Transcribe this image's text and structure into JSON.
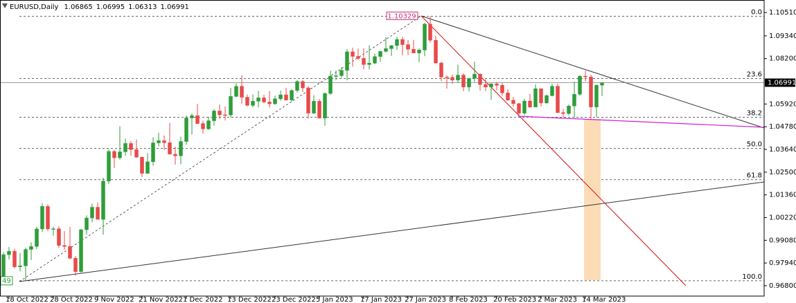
{
  "chart_data": {
    "type": "candlestick",
    "symbol": "EURUSD,Daily",
    "up_color": "#2e9e3a",
    "down_color": "#e84a4a",
    "ylim": [
      0.9628,
      1.1114
    ],
    "yticks": [
      {
        "value": 1.1051,
        "label": "1.10510"
      },
      {
        "value": 1.0934,
        "label": "1.09340"
      },
      {
        "value": 1.082,
        "label": "1.08200"
      },
      {
        "value": 1.0592,
        "label": "1.05920"
      },
      {
        "value": 1.0478,
        "label": "1.04780"
      },
      {
        "value": 1.0364,
        "label": "1.03640"
      },
      {
        "value": 1.025,
        "label": "1.02500"
      },
      {
        "value": 1.0136,
        "label": "1.01360"
      },
      {
        "value": 1.0022,
        "label": "1.00220"
      },
      {
        "value": 0.9908,
        "label": "0.99080"
      },
      {
        "value": 0.9794,
        "label": "0.97940"
      },
      {
        "value": 0.968,
        "label": "0.96800"
      }
    ],
    "categories": [
      null,
      null,
      null,
      "18 Oct 2022",
      null,
      null,
      null,
      null,
      null,
      null,
      null,
      "28 Oct 2022",
      null,
      null,
      null,
      null,
      null,
      null,
      null,
      "9 Nov 2022",
      null,
      null,
      null,
      null,
      null,
      null,
      null,
      "21 Nov 2022",
      null,
      null,
      null,
      null,
      null,
      null,
      null,
      "1 Dec 2022",
      null,
      null,
      null,
      null,
      null,
      null,
      null,
      "13 Dec 2022",
      null,
      null,
      null,
      null,
      null,
      null,
      null,
      "23 Dec 2022",
      null,
      null,
      null,
      null,
      null,
      null,
      null,
      "5 Jan 2023",
      null,
      null,
      null,
      null,
      null,
      null,
      null,
      "17 Jan 2023",
      null,
      null,
      null,
      null,
      null,
      null,
      null,
      "27 Jan 2023",
      null,
      null,
      null,
      null,
      null,
      null,
      null,
      "8 Feb 2023",
      null,
      null,
      null,
      null,
      null,
      null,
      null,
      "20 Feb 2023",
      null,
      null,
      null,
      null,
      null,
      null,
      null,
      "2 Mar 2023",
      null,
      null,
      null,
      null,
      null,
      null,
      null,
      "14 Mar 2023",
      null,
      null,
      null
    ],
    "open": [
      0.97,
      0.9779,
      0.9724,
      0.9836,
      0.9853,
      0.9775,
      0.978,
      0.9862,
      0.9877,
      0.9965,
      1.0078,
      0.9965,
      0.9966,
      0.9882,
      0.9877,
      0.9818,
      0.9751,
      0.9961,
      1.002,
      1.0074,
      1.0013,
      1.0205,
      1.0354,
      1.0322,
      1.0352,
      1.0394,
      1.0363,
      1.0325,
      1.0244,
      1.0302,
      1.0397,
      1.0408,
      1.0398,
      1.034,
      1.0332,
      1.0404,
      1.0522,
      1.0534,
      1.0494,
      1.0467,
      1.0508,
      1.0557,
      1.0538,
      1.0537,
      1.063,
      1.0681,
      1.0626,
      1.0585,
      1.0606,
      1.0623,
      1.0602,
      1.0593,
      1.0618,
      1.0638,
      1.0612,
      1.066,
      1.0705,
      1.0673,
      1.0546,
      1.0606,
      1.0521,
      1.0645,
      1.0732,
      1.0734,
      1.0761,
      1.0854,
      1.0831,
      1.0821,
      1.079,
      1.0797,
      1.083,
      1.0856,
      1.087,
      1.0885,
      1.0916,
      1.089,
      1.0867,
      1.0848,
      1.0863,
      1.0993,
      1.0912,
      1.0798,
      1.0727,
      1.0726,
      1.0712,
      1.0737,
      1.0677,
      1.0721,
      1.0742,
      1.069,
      1.0677,
      1.0693,
      1.0686,
      1.0648,
      1.0611,
      1.0594,
      1.0546,
      1.0607,
      1.0577,
      1.0669,
      1.0597,
      1.0634,
      1.0681,
      1.0549,
      1.0544,
      1.0582,
      1.0641,
      1.0732,
      1.0728,
      1.0577,
      1.06865
    ],
    "high": [
      0.981,
      0.9806,
      0.9848,
      0.9875,
      0.9866,
      0.9844,
      0.9871,
      0.9898,
      0.9976,
      1.0094,
      1.0089,
      0.9976,
      0.9978,
      0.9954,
      0.9976,
      0.9829,
      0.9965,
      1.0033,
      1.0093,
      1.0097,
      1.0222,
      1.0364,
      1.0362,
      1.0481,
      1.0418,
      1.0406,
      1.0414,
      1.0329,
      1.0346,
      1.0425,
      1.0448,
      1.0434,
      1.0497,
      1.0378,
      1.0428,
      1.0534,
      1.0544,
      1.0593,
      1.0509,
      1.0529,
      1.0566,
      1.059,
      1.058,
      1.0673,
      1.0695,
      1.0736,
      1.0639,
      1.0639,
      1.0658,
      1.0639,
      1.0658,
      1.0634,
      1.0659,
      1.0674,
      1.0665,
      1.0713,
      1.0713,
      1.0683,
      1.0636,
      1.0617,
      1.065,
      1.076,
      1.0761,
      1.0777,
      1.0868,
      1.0875,
      1.0871,
      1.0871,
      1.0887,
      1.0846,
      1.0859,
      1.0927,
      1.0888,
      1.093,
      1.0929,
      1.0913,
      1.0914,
      1.0872,
      1.1,
      1.10329,
      1.0934,
      1.0804,
      1.0736,
      1.074,
      1.079,
      1.0746,
      1.0723,
      1.0805,
      1.0745,
      1.0716,
      1.0695,
      1.0703,
      1.0697,
      1.0667,
      1.0627,
      1.0598,
      1.0619,
      1.0644,
      1.0691,
      1.067,
      1.064,
      1.0694,
      1.0694,
      1.0568,
      1.0589,
      1.0705,
      1.0736,
      1.0759,
      1.0738,
      1.069,
      1.06995
    ],
    "low": [
      0.9632,
      0.9705,
      0.9713,
      0.9812,
      0.9767,
      0.9753,
      0.9705,
      0.9809,
      0.9864,
      0.995,
      0.9955,
      0.9931,
      0.987,
      0.986,
      0.9812,
      0.973,
      0.9745,
      0.9936,
      0.9999,
      1.0017,
      0.9936,
      1.019,
      1.0271,
      1.0313,
      1.0332,
      1.0333,
      1.0322,
      1.0225,
      1.0242,
      1.0282,
      1.0379,
      1.0361,
      1.034,
      1.0288,
      1.029,
      1.0388,
      1.0439,
      1.0492,
      1.0443,
      1.0462,
      1.0483,
      1.0517,
      1.0509,
      1.0524,
      1.0626,
      1.0593,
      1.0581,
      1.0575,
      1.0575,
      1.0595,
      1.0574,
      1.0589,
      1.0609,
      1.0609,
      1.0606,
      1.065,
      1.0652,
      1.0519,
      1.0543,
      1.0519,
      1.0483,
      1.0638,
      1.0712,
      1.0723,
      1.0711,
      1.078,
      1.0814,
      1.0766,
      1.0765,
      1.0792,
      1.0804,
      1.0851,
      1.0833,
      1.0863,
      1.0836,
      1.0838,
      1.0848,
      1.0802,
      1.0832,
      1.09,
      1.0795,
      1.0706,
      1.0669,
      1.0693,
      1.0698,
      1.0656,
      1.0655,
      1.0702,
      1.0659,
      1.0657,
      1.0613,
      1.0661,
      1.0633,
      1.061,
      1.0577,
      1.0532,
      1.0535,
      1.0573,
      1.0577,
      1.058,
      1.0594,
      1.063,
      1.0546,
      1.0526,
      1.0535,
      1.0524,
      1.0634,
      1.0705,
      1.0516,
      1.0525,
      1.06313
    ],
    "close": [
      0.9779,
      0.9722,
      0.9836,
      0.9853,
      0.9775,
      0.978,
      0.9862,
      0.9877,
      0.9965,
      1.0078,
      0.9965,
      0.9966,
      0.9882,
      0.9877,
      0.9818,
      0.9751,
      0.9961,
      1.002,
      1.0074,
      1.0013,
      1.0205,
      1.0354,
      1.0322,
      1.0352,
      1.0394,
      1.0363,
      1.0325,
      1.0244,
      1.0302,
      1.0397,
      1.0408,
      1.0398,
      1.034,
      1.0332,
      1.0404,
      1.0522,
      1.0534,
      1.0494,
      1.0467,
      1.0508,
      1.0557,
      1.0538,
      1.0537,
      1.063,
      1.0681,
      1.0626,
      1.0585,
      1.0606,
      1.0623,
      1.0602,
      1.0593,
      1.0618,
      1.0638,
      1.0612,
      1.066,
      1.0705,
      1.0673,
      1.0546,
      1.0606,
      1.0521,
      1.0645,
      1.0732,
      1.0734,
      1.0761,
      1.0854,
      1.0831,
      1.0821,
      1.079,
      1.0797,
      1.083,
      1.0856,
      1.087,
      1.0885,
      1.0916,
      1.089,
      1.0867,
      1.0848,
      1.0863,
      1.0993,
      1.0912,
      1.0798,
      1.0727,
      1.0726,
      1.0712,
      1.0737,
      1.0677,
      1.0721,
      1.0742,
      1.069,
      1.0677,
      1.0693,
      1.0686,
      1.0648,
      1.0611,
      1.0594,
      1.0546,
      1.0607,
      1.0577,
      1.0669,
      1.0597,
      1.0634,
      1.0681,
      1.0549,
      1.0544,
      1.0582,
      1.0641,
      1.0732,
      1.0728,
      1.0577,
      1.0686,
      1.06991
    ],
    "fibonacci": {
      "high": 1.10329,
      "low": 0.97049,
      "low_label": "49",
      "levels": [
        {
          "value": 0,
          "label": "0.0"
        },
        23.6,
        38.2,
        {
          "value": 50,
          "label": "50.0"
        },
        61.8,
        {
          "value": 100,
          "label": "100.0"
        }
      ]
    }
  }
}
